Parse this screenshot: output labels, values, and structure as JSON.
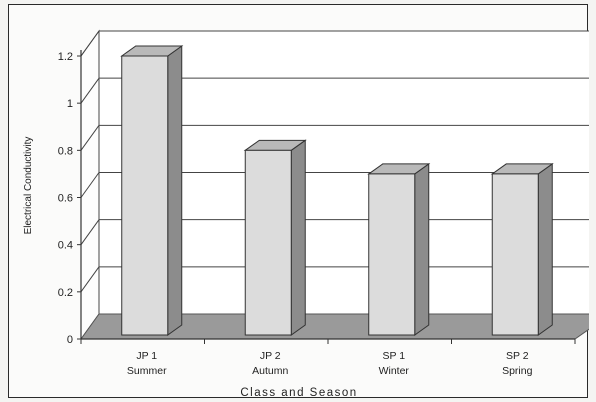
{
  "chart_data": {
    "type": "bar",
    "style": "3d",
    "categories": [
      [
        "JP 1",
        "Summer"
      ],
      [
        "JP 2",
        "Autumn"
      ],
      [
        "SP 1",
        "Winter"
      ],
      [
        "SP 2",
        "Spring"
      ]
    ],
    "values": [
      1.2,
      0.8,
      0.7,
      0.7
    ],
    "xlabel": "Class and Season",
    "ylabel": "Electrical Conductivity",
    "ylim": [
      0,
      1.2
    ],
    "yticks": [
      "0",
      "0.2",
      "0.4",
      "0.6",
      "0.8",
      "1",
      "1.2"
    ],
    "grid": true,
    "legend": "none",
    "colors": {
      "bar_front": "#dcdcdc",
      "bar_top": "#b9b9b9",
      "bar_side": "#8c8c8c",
      "floor": "#9a9a9a",
      "grid": "#444444"
    }
  }
}
